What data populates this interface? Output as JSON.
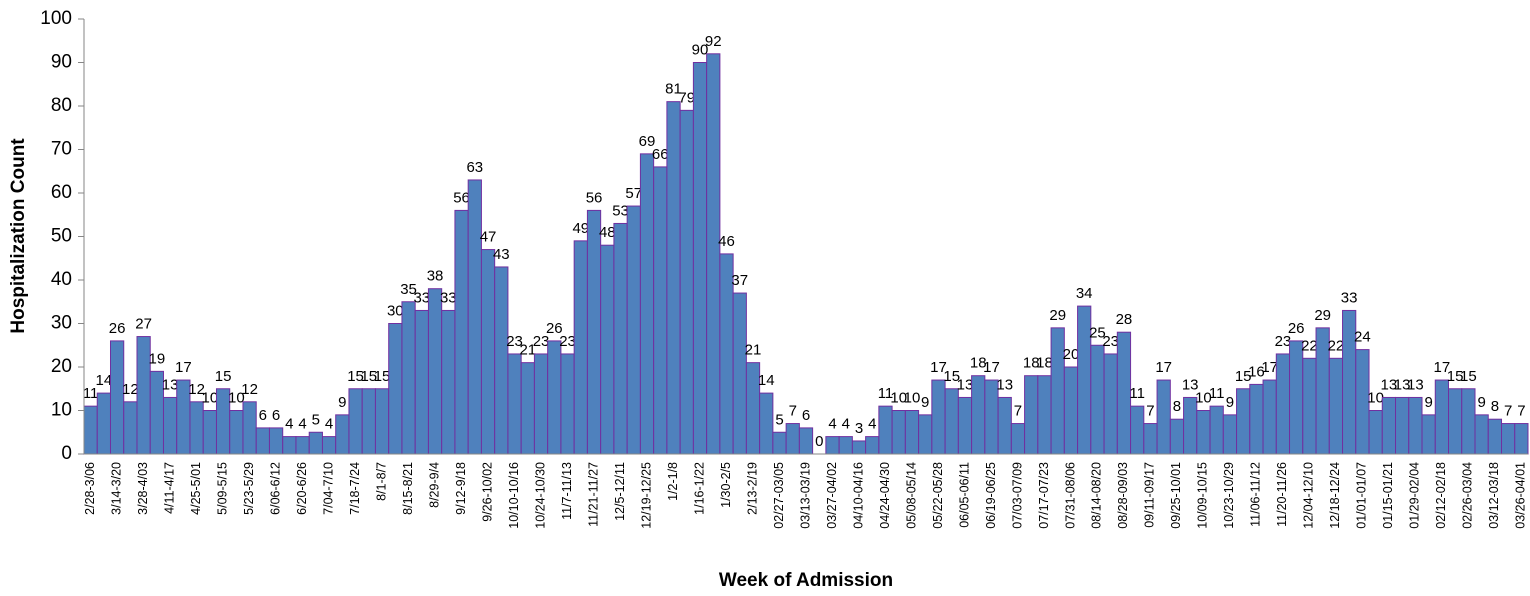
{
  "chart_data": {
    "type": "bar",
    "x_label": "Week of Admission",
    "y_label": "Hospitalization Count",
    "categories": [
      "2/28-3/06",
      null,
      "3/14-3/20",
      null,
      "3/28-4/03",
      null,
      "4/11-4/17",
      null,
      "4/25-5/01",
      null,
      "5/09-5/15",
      null,
      "5/23-5/29",
      null,
      "6/06-6/12",
      null,
      "6/20-6/26",
      null,
      "7/04-7/10",
      null,
      "7/18-7/24",
      null,
      "8/1-8/7",
      null,
      "8/15-8/21",
      null,
      "8/29-9/4",
      null,
      "9/12-9/18",
      null,
      "9/26-10/02",
      null,
      "10/10-10/16",
      null,
      "10/24-10/30",
      null,
      "11/7-11/13",
      null,
      "11/21-11/27",
      null,
      "12/5-12/11",
      null,
      "12/19-12/25",
      null,
      "1/2-1/8",
      null,
      "1/16-1/22",
      null,
      "1/30-2/5",
      null,
      "2/13-2/19",
      null,
      "02/27-03/05",
      null,
      "03/13-03/19",
      null,
      "03/27-04/02",
      null,
      "04/10-04/16",
      null,
      "04/24-04/30",
      null,
      "05/08-05/14",
      null,
      "05/22-05/28",
      null,
      "06/05-06/11",
      null,
      "06/19-06/25",
      null,
      "07/03-07/09",
      null,
      "07/17-07/23",
      null,
      "07/31-08/06",
      null,
      "08/14-08/20",
      null,
      "08/28-09/03",
      null,
      "09/11-09/17",
      null,
      "09/25-10/01",
      null,
      "10/09-10/15",
      null,
      "10/23-10/29",
      null,
      "11/06-11/12",
      null,
      "11/20-11/26",
      null,
      "12/04-12/10",
      null,
      "12/18-12/24",
      null,
      "01/01-01/07",
      null,
      "01/15-01/21",
      null,
      "01/29-02/04",
      null,
      "02/12-02/18",
      null,
      "02/26-03/04",
      null,
      "03/12-03/18",
      null,
      "03/26-04/01"
    ],
    "values": [
      11,
      14,
      26,
      12,
      27,
      19,
      13,
      17,
      12,
      10,
      15,
      10,
      12,
      6,
      6,
      4,
      4,
      5,
      4,
      9,
      15,
      15,
      15,
      30,
      35,
      33,
      38,
      33,
      56,
      63,
      47,
      43,
      23,
      21,
      23,
      26,
      23,
      49,
      56,
      48,
      53,
      57,
      69,
      66,
      81,
      79,
      90,
      92,
      46,
      37,
      21,
      14,
      5,
      7,
      6,
      0,
      4,
      4,
      3,
      4,
      11,
      10,
      10,
      9,
      17,
      15,
      13,
      18,
      17,
      13,
      7,
      18,
      18,
      29,
      20,
      34,
      25,
      23,
      28,
      11,
      7,
      17,
      8,
      13,
      10,
      11,
      9,
      15,
      16,
      17,
      23,
      26,
      22,
      29,
      22,
      33,
      24,
      10,
      13,
      13,
      13,
      9,
      17,
      15,
      15,
      9,
      8,
      7,
      7
    ],
    "color": "#4f81bd",
    "edge_color": "#7030a0",
    "ylim": [
      0,
      100
    ],
    "yticks": [
      0,
      10,
      20,
      30,
      40,
      50,
      60,
      70,
      80,
      90,
      100
    ],
    "grid": false
  }
}
